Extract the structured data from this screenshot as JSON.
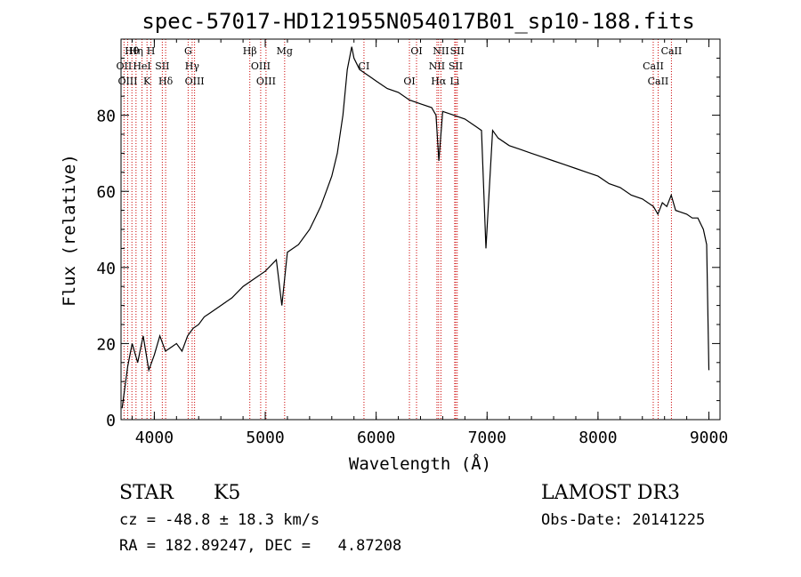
{
  "chart_data": {
    "type": "line",
    "title": "spec-57017-HD121955N054017B01_sp10-188.fits",
    "xlabel": "Wavelength (Å)",
    "ylabel": "Flux (relative)",
    "xlim": [
      3700,
      9100
    ],
    "ylim": [
      0,
      100
    ],
    "xticks": [
      4000,
      5000,
      6000,
      7000,
      8000,
      9000
    ],
    "xtick_labels": [
      "4000",
      "5000",
      "6000",
      "7000",
      "8000",
      "9000"
    ],
    "yticks": [
      0,
      20,
      40,
      60,
      80
    ],
    "ytick_labels": [
      "0",
      "20",
      "40",
      "60",
      "80"
    ],
    "series": [
      {
        "name": "flux",
        "x": [
          3710,
          3760,
          3800,
          3850,
          3900,
          3950,
          4000,
          4050,
          4100,
          4150,
          4200,
          4250,
          4300,
          4350,
          4400,
          4450,
          4500,
          4600,
          4700,
          4800,
          4900,
          5000,
          5100,
          5150,
          5200,
          5300,
          5400,
          5450,
          5500,
          5550,
          5600,
          5650,
          5700,
          5740,
          5780,
          5800,
          5850,
          5900,
          5950,
          6000,
          6100,
          6200,
          6300,
          6400,
          6500,
          6540,
          6565,
          6600,
          6700,
          6800,
          6900,
          6950,
          6990,
          7050,
          7100,
          7200,
          7300,
          7400,
          7500,
          7600,
          7700,
          7800,
          7900,
          8000,
          8100,
          8200,
          8300,
          8400,
          8500,
          8540,
          8580,
          8620,
          8660,
          8700,
          8800,
          8850,
          8900,
          8950,
          8980,
          9000
        ],
        "y": [
          3,
          14,
          20,
          15,
          22,
          13,
          17,
          22,
          18,
          19,
          20,
          18,
          22,
          24,
          25,
          27,
          28,
          30,
          32,
          35,
          37,
          39,
          42,
          30,
          44,
          46,
          50,
          53,
          56,
          60,
          64,
          70,
          80,
          92,
          98,
          95,
          92,
          91,
          90,
          89,
          87,
          86,
          84,
          83,
          82,
          80,
          68,
          81,
          80,
          79,
          77,
          76,
          45,
          76,
          74,
          72,
          71,
          70,
          69,
          68,
          67,
          66,
          65,
          64,
          62,
          61,
          59,
          58,
          56,
          54,
          57,
          56,
          59,
          55,
          54,
          53,
          53,
          50,
          46,
          13
        ]
      }
    ],
    "lines": [
      {
        "name": "Hθ",
        "x": 3798
      },
      {
        "name": "OII",
        "x": 3727
      },
      {
        "name": "OIII",
        "x": 3760
      },
      {
        "name": "Hη",
        "x": 3835
      },
      {
        "name": "HeI",
        "x": 3889
      },
      {
        "name": "K",
        "x": 3934
      },
      {
        "name": "H",
        "x": 3969
      },
      {
        "name": "SII",
        "x": 4072
      },
      {
        "name": "Hδ",
        "x": 4102
      },
      {
        "name": "G",
        "x": 4305
      },
      {
        "name": "Hγ",
        "x": 4341
      },
      {
        "name": "OIII",
        "x": 4363
      },
      {
        "name": "Hβ",
        "x": 4861
      },
      {
        "name": "OIII",
        "x": 4959
      },
      {
        "name": "OIII",
        "x": 5007
      },
      {
        "name": "Mg",
        "x": 5175
      },
      {
        "name": "CI",
        "x": 5890
      },
      {
        "name": "OI",
        "x": 6300
      },
      {
        "name": "OI",
        "x": 6364
      },
      {
        "name": "NII",
        "x": 6548
      },
      {
        "name": "Hα",
        "x": 6563
      },
      {
        "name": "NII",
        "x": 6584
      },
      {
        "name": "SII",
        "x": 6717
      },
      {
        "name": "Li",
        "x": 6708
      },
      {
        "name": "SII",
        "x": 6731
      },
      {
        "name": "CaII",
        "x": 8498
      },
      {
        "name": "CaII",
        "x": 8542
      },
      {
        "name": "CaII",
        "x": 8662
      }
    ]
  },
  "info": {
    "object_class": "STAR",
    "subclass": "K5",
    "survey": "LAMOST DR3",
    "redshift": "cz = -48.8 ± 18.3 km/s",
    "obs_date": "Obs-Date: 20141225",
    "coords": "RA = 182.89247, DEC =   4.87208"
  },
  "colors": {
    "line": "#000000",
    "marker": "#cc0000",
    "background": "#ffffff"
  }
}
